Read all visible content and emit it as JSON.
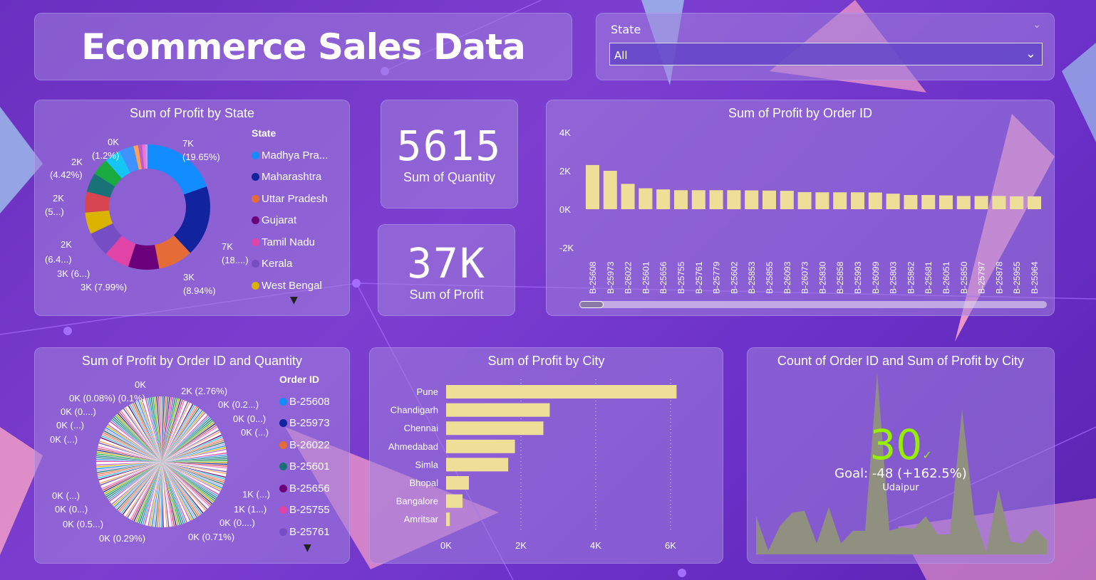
{
  "header": {
    "title": "Ecommerce Sales Data"
  },
  "slicer": {
    "label": "State",
    "value": "All"
  },
  "cards": {
    "quantity": {
      "value": "5615",
      "label": "Sum of Quantity"
    },
    "profit": {
      "value": "37K",
      "label": "Sum of Profit"
    }
  },
  "chart_data": [
    {
      "type": "pie",
      "variant": "donut",
      "title": "Sum of Profit by State",
      "legend_title": "State",
      "legend_position": "right",
      "legend": [
        {
          "name": "Madhya Pra...",
          "color": "#118DFF"
        },
        {
          "name": "Maharashtra",
          "color": "#12239E"
        },
        {
          "name": "Uttar Pradesh",
          "color": "#E66C37"
        },
        {
          "name": "Gujarat",
          "color": "#6B007B"
        },
        {
          "name": "Tamil Nadu",
          "color": "#E044A7"
        },
        {
          "name": "Kerala",
          "color": "#744EC2"
        },
        {
          "name": "West Bengal",
          "color": "#D9B300"
        }
      ],
      "slices": [
        {
          "pct": 19.65,
          "color": "#118DFF"
        },
        {
          "pct": 18.4,
          "color": "#12239E"
        },
        {
          "pct": 8.94,
          "color": "#E66C37"
        },
        {
          "pct": 7.99,
          "color": "#6B007B"
        },
        {
          "pct": 6.6,
          "color": "#E044A7"
        },
        {
          "pct": 6.4,
          "color": "#744EC2"
        },
        {
          "pct": 5.6,
          "color": "#D9B300"
        },
        {
          "pct": 5.4,
          "color": "#D64550"
        },
        {
          "pct": 5.0,
          "color": "#197278"
        },
        {
          "pct": 4.42,
          "color": "#1AAB40"
        },
        {
          "pct": 4.2,
          "color": "#15C6F4"
        },
        {
          "pct": 3.8,
          "color": "#4092FF"
        },
        {
          "pct": 1.2,
          "color": "#FFA058"
        },
        {
          "pct": 1.0,
          "color": "#BE5DC9"
        },
        {
          "pct": 0.8,
          "color": "#F472D0"
        },
        {
          "pct": 0.59,
          "color": "#B5A1FF"
        }
      ],
      "data_labels": [
        "7K",
        "(19.65%)",
        "7K",
        "(18....)",
        "3K",
        "(8.94%)",
        "3K (7.99%)",
        "3K (6...)",
        "2K",
        "(6.4...)",
        "2K",
        "(5...)",
        "2K",
        "(4.42%)",
        "0K",
        "(1.2%)"
      ]
    },
    {
      "type": "bar",
      "title": "Sum of Profit by Order ID",
      "ylim": [
        -2000,
        4000
      ],
      "yticks": [
        "4K",
        "2K",
        "0K",
        "-2K"
      ],
      "categories": [
        "B-25608",
        "B-25973",
        "B-26022",
        "B-25601",
        "B-25656",
        "B-25755",
        "B-25761",
        "B-25779",
        "B-25602",
        "B-25853",
        "B-25855",
        "B-26093",
        "B-26073",
        "B-25830",
        "B-25858",
        "B-25993",
        "B-26099",
        "B-25803",
        "B-25862",
        "B-25681",
        "B-26051",
        "B-25850",
        "B-25797",
        "B-25878",
        "B-25955",
        "B-25964"
      ],
      "values": [
        2300,
        2000,
        1320,
        1090,
        1030,
        990,
        990,
        990,
        990,
        980,
        970,
        960,
        890,
        880,
        880,
        880,
        870,
        810,
        740,
        740,
        720,
        690,
        690,
        690,
        670,
        670
      ],
      "bar_color": "#EEDF98"
    },
    {
      "type": "pie",
      "title": "Sum of Profit by Order ID and Quantity",
      "legend_title": "Order ID",
      "legend_position": "right",
      "legend": [
        {
          "name": "B-25608",
          "color": "#118DFF"
        },
        {
          "name": "B-25973",
          "color": "#12239E"
        },
        {
          "name": "B-26022",
          "color": "#E66C37"
        },
        {
          "name": "B-25601",
          "color": "#197278"
        },
        {
          "name": "B-25656",
          "color": "#6B007B"
        },
        {
          "name": "B-25755",
          "color": "#E044A7"
        },
        {
          "name": "B-25761",
          "color": "#744EC2"
        }
      ],
      "data_labels": [
        "0K",
        "0K (0.08%) (0.1%)",
        "0K (0....)",
        "0K (...)",
        "0K (...)",
        "2K (2.76%)",
        "0K (0.2...)",
        "0K (0...)",
        "0K (...)",
        "1K (...)",
        "1K (1...)",
        "0K (0....)",
        "0K (0.71%)",
        "0K (0.29%)",
        "0K (0.5...)",
        "0K (0...)",
        "0K (...)"
      ]
    },
    {
      "type": "bar",
      "orientation": "horizontal",
      "title": "Sum of Profit by City",
      "xlim": [
        0,
        6500
      ],
      "xticks": [
        "0K",
        "2K",
        "4K",
        "6K"
      ],
      "grid": true,
      "categories": [
        "Pune",
        "Chandigarh",
        "Chennai",
        "Ahmedabad",
        "Simla",
        "Bhopal",
        "Bangalore",
        "Amritsar"
      ],
      "values": [
        6160,
        2770,
        2600,
        1840,
        1660,
        610,
        440,
        100
      ],
      "bar_color": "#EEDF98"
    },
    {
      "type": "area",
      "title": "Count of Order ID and Sum of Profit by City",
      "kpi_value": "30",
      "kpi_goal": "Goal: -48 (+162.5%)",
      "kpi_category": "Udaipur",
      "kpi_color": "#94F000",
      "area_color": "#8F9080",
      "values": [
        21,
        2,
        16,
        23,
        24,
        6,
        26,
        6,
        13,
        13,
        100,
        13,
        15,
        14,
        21,
        11,
        11,
        80,
        21,
        1,
        36,
        7,
        6,
        14,
        8
      ]
    }
  ]
}
